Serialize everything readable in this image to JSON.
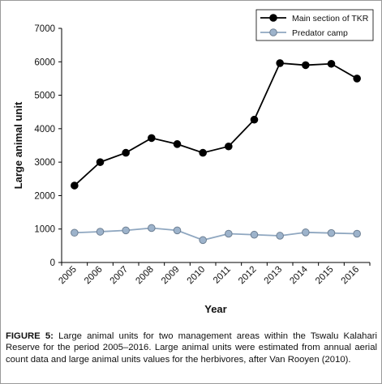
{
  "chart_data": {
    "type": "line",
    "categories": [
      "2005",
      "2006",
      "2007",
      "2008",
      "2009",
      "2010",
      "2011",
      "2012",
      "2013",
      "2014",
      "2015",
      "2016"
    ],
    "series": [
      {
        "name": "Main section of TKR",
        "color": "#000000",
        "values": [
          2300,
          3000,
          3280,
          3720,
          3540,
          3280,
          3470,
          4270,
          5960,
          5900,
          5940,
          5500
        ]
      },
      {
        "name": "Predator camp",
        "color": "#8fa7c0",
        "values": [
          890,
          920,
          960,
          1030,
          960,
          670,
          860,
          830,
          800,
          900,
          880,
          860
        ]
      }
    ],
    "xlabel": "Year",
    "ylabel": "Large animal unit",
    "ylim": [
      0,
      7000
    ],
    "yticks": [
      "0",
      "1000",
      "2000",
      "3000",
      "4000",
      "5000",
      "6000",
      "7000"
    ],
    "grid": false,
    "legend_position": "top-right"
  },
  "caption": {
    "label": "FIGURE 5:",
    "text": "Large animal units for two management areas within the Tswalu Kalahari Reserve for the period 2005–2016. Large animal units were estimated from annual aerial count data and large animal units values for the herbivores, after Van Rooyen (2010)."
  }
}
